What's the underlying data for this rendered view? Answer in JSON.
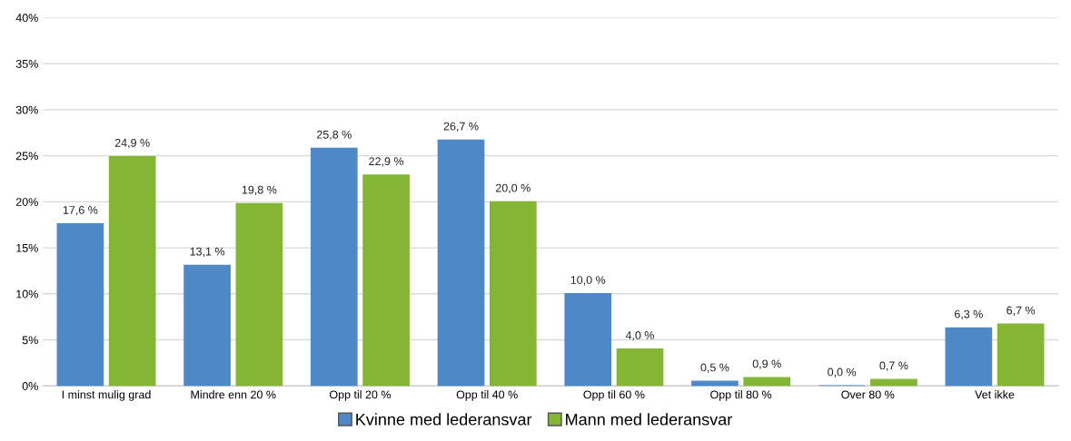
{
  "chart_data": {
    "type": "bar",
    "categories": [
      "I minst mulig grad",
      "Mindre enn 20 %",
      "Opp til 20 %",
      "Opp til 40 %",
      "Opp til 60 %",
      "Opp til 80 %",
      "Over 80 %",
      "Vet ikke"
    ],
    "series": [
      {
        "name": "Kvinne med lederansvar",
        "color": "#4f88c6",
        "values": [
          17.6,
          13.1,
          25.8,
          26.7,
          10.0,
          0.5,
          0.0,
          6.3
        ],
        "value_labels": [
          "17,6 %",
          "13,1 %",
          "25,8 %",
          "26,7 %",
          "10,0 %",
          "0,5 %",
          "0,0 %",
          "6,3 %"
        ]
      },
      {
        "name": "Mann med lederansvar",
        "color": "#84b534",
        "values": [
          24.9,
          19.8,
          22.9,
          20.0,
          4.0,
          0.9,
          0.7,
          6.7
        ],
        "value_labels": [
          "24,9 %",
          "19,8 %",
          "22,9 %",
          "20,0 %",
          "4,0 %",
          "0,9 %",
          "0,7 %",
          "6,7 %"
        ]
      }
    ],
    "ylim": [
      0,
      40
    ],
    "yticks": [
      {
        "value": 0,
        "label": "0%"
      },
      {
        "value": 5,
        "label": "5%"
      },
      {
        "value": 10,
        "label": "10%"
      },
      {
        "value": 15,
        "label": "15%"
      },
      {
        "value": 20,
        "label": "20%"
      },
      {
        "value": 25,
        "label": "25%"
      },
      {
        "value": 30,
        "label": "30%"
      },
      {
        "value": 35,
        "label": "35%"
      },
      {
        "value": 40,
        "label": "40%"
      }
    ],
    "grid": "y",
    "legend": "bottom"
  }
}
